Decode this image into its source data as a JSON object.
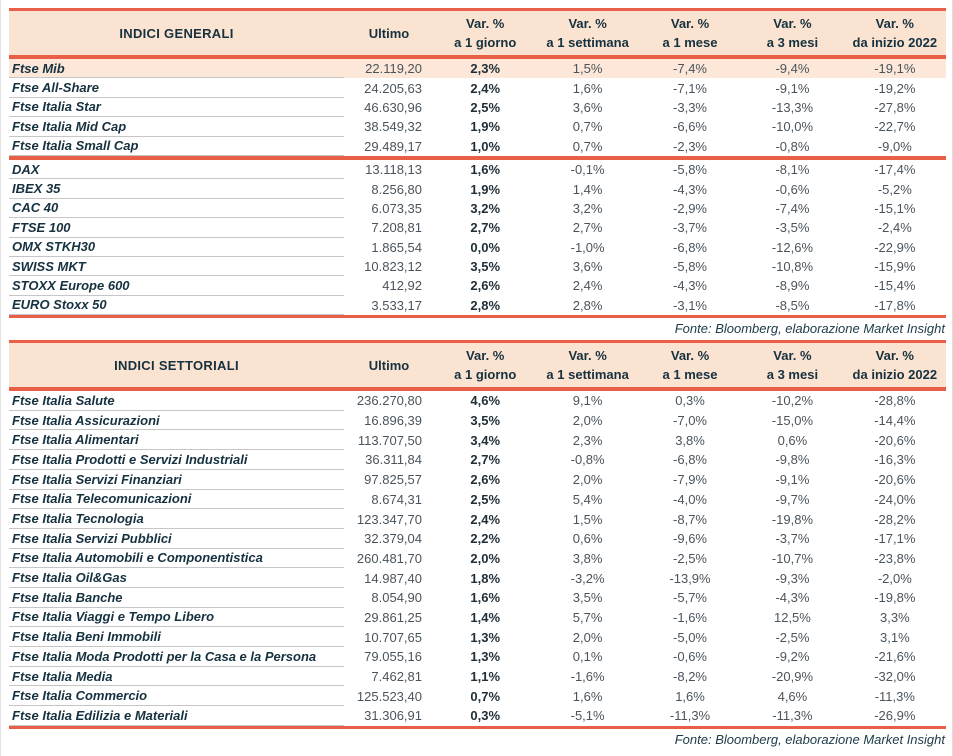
{
  "colors": {
    "accent_red": "#e85e46",
    "header_bg": "#fbe3d1",
    "highlight_row_bg": "#fce7d8",
    "label_text": "#16313f",
    "value_text": "#4a545c",
    "row_separator": "#c6c6c6"
  },
  "columns": {
    "ultimo": "Ultimo",
    "var_top": "Var. %",
    "var_bottom": [
      "a 1 giorno",
      "a 1 settimana",
      "a 1 mese",
      "a 3 mesi",
      "da inizio 2022"
    ]
  },
  "tables": [
    {
      "title": "INDICI GENERALI",
      "source_note": "Fonte: Bloomberg, elaborazione Market Insight",
      "highlight": {
        "section": 0,
        "row": 0
      },
      "sections": [
        {
          "rows": [
            [
              "Ftse Mib",
              "22.119,20",
              "2,3%",
              "1,5%",
              "-7,4%",
              "-9,4%",
              "-19,1%"
            ],
            [
              "Ftse All-Share",
              "24.205,63",
              "2,4%",
              "1,6%",
              "-7,1%",
              "-9,1%",
              "-19,2%"
            ],
            [
              "Ftse Italia Star",
              "46.630,96",
              "2,5%",
              "3,6%",
              "-3,3%",
              "-13,3%",
              "-27,8%"
            ],
            [
              "Ftse Italia Mid Cap",
              "38.549,32",
              "1,9%",
              "0,7%",
              "-6,6%",
              "-10,0%",
              "-22,7%"
            ],
            [
              "Ftse Italia Small Cap",
              "29.489,17",
              "1,0%",
              "0,7%",
              "-2,3%",
              "-0,8%",
              "-9,0%"
            ]
          ]
        },
        {
          "rows": [
            [
              "DAX",
              "13.118,13",
              "1,6%",
              "-0,1%",
              "-5,8%",
              "-8,1%",
              "-17,4%"
            ],
            [
              "IBEX 35",
              "8.256,80",
              "1,9%",
              "1,4%",
              "-4,3%",
              "-0,6%",
              "-5,2%"
            ],
            [
              "CAC 40",
              "6.073,35",
              "3,2%",
              "3,2%",
              "-2,9%",
              "-7,4%",
              "-15,1%"
            ],
            [
              "FTSE 100",
              "7.208,81",
              "2,7%",
              "2,7%",
              "-3,7%",
              "-3,5%",
              "-2,4%"
            ],
            [
              "OMX STKH30",
              "1.865,54",
              "0,0%",
              "-1,0%",
              "-6,8%",
              "-12,6%",
              "-22,9%"
            ],
            [
              "SWISS MKT",
              "10.823,12",
              "3,5%",
              "3,6%",
              "-5,8%",
              "-10,8%",
              "-15,9%"
            ],
            [
              "STOXX Europe 600",
              "412,92",
              "2,6%",
              "2,4%",
              "-4,3%",
              "-8,9%",
              "-15,4%"
            ],
            [
              "EURO Stoxx 50",
              "3.533,17",
              "2,8%",
              "2,8%",
              "-3,1%",
              "-8,5%",
              "-17,8%"
            ]
          ]
        }
      ]
    },
    {
      "title": "INDICI SETTORIALI",
      "source_note": "Fonte: Bloomberg, elaborazione Market Insight",
      "highlight": null,
      "sections": [
        {
          "rows": [
            [
              "Ftse Italia Salute",
              "236.270,80",
              "4,6%",
              "9,1%",
              "0,3%",
              "-10,2%",
              "-28,8%"
            ],
            [
              "Ftse Italia Assicurazioni",
              "16.896,39",
              "3,5%",
              "2,0%",
              "-7,0%",
              "-15,0%",
              "-14,4%"
            ],
            [
              "Ftse Italia Alimentari",
              "113.707,50",
              "3,4%",
              "2,3%",
              "3,8%",
              "0,6%",
              "-20,6%"
            ],
            [
              "Ftse Italia Prodotti e Servizi Industriali",
              "36.311,84",
              "2,7%",
              "-0,8%",
              "-6,8%",
              "-9,8%",
              "-16,3%"
            ],
            [
              "Ftse Italia Servizi Finanziari",
              "97.825,57",
              "2,6%",
              "2,0%",
              "-7,9%",
              "-9,1%",
              "-20,6%"
            ],
            [
              "Ftse Italia Telecomunicazioni",
              "8.674,31",
              "2,5%",
              "5,4%",
              "-4,0%",
              "-9,7%",
              "-24,0%"
            ],
            [
              "Ftse Italia Tecnologia",
              "123.347,70",
              "2,4%",
              "1,5%",
              "-8,7%",
              "-19,8%",
              "-28,2%"
            ],
            [
              "Ftse Italia Servizi Pubblici",
              "32.379,04",
              "2,2%",
              "0,6%",
              "-9,6%",
              "-3,7%",
              "-17,1%"
            ],
            [
              "Ftse Italia Automobili e Componentistica",
              "260.481,70",
              "2,0%",
              "3,8%",
              "-2,5%",
              "-10,7%",
              "-23,8%"
            ],
            [
              "Ftse Italia Oil&Gas",
              "14.987,40",
              "1,8%",
              "-3,2%",
              "-13,9%",
              "-9,3%",
              "-2,0%"
            ],
            [
              "Ftse Italia Banche",
              "8.054,90",
              "1,6%",
              "3,5%",
              "-5,7%",
              "-4,3%",
              "-19,8%"
            ],
            [
              "Ftse Italia Viaggi e Tempo Libero",
              "29.861,25",
              "1,4%",
              "5,7%",
              "-1,6%",
              "12,5%",
              "3,3%"
            ],
            [
              "Ftse Italia Beni Immobili",
              "10.707,65",
              "1,3%",
              "2,0%",
              "-5,0%",
              "-2,5%",
              "3,1%"
            ],
            [
              "Ftse Italia Moda Prodotti per la Casa e la Persona",
              "79.055,16",
              "1,3%",
              "0,1%",
              "-0,6%",
              "-9,2%",
              "-21,6%"
            ],
            [
              "Ftse Italia Media",
              "7.462,81",
              "1,1%",
              "-1,6%",
              "-8,2%",
              "-20,9%",
              "-32,0%"
            ],
            [
              "Ftse Italia Commercio",
              "125.523,40",
              "0,7%",
              "1,6%",
              "1,6%",
              "4,6%",
              "-11,3%"
            ],
            [
              "Ftse Italia Edilizia e Materiali",
              "31.306,91",
              "0,3%",
              "-5,1%",
              "-11,3%",
              "-11,3%",
              "-26,9%"
            ]
          ]
        }
      ]
    }
  ]
}
